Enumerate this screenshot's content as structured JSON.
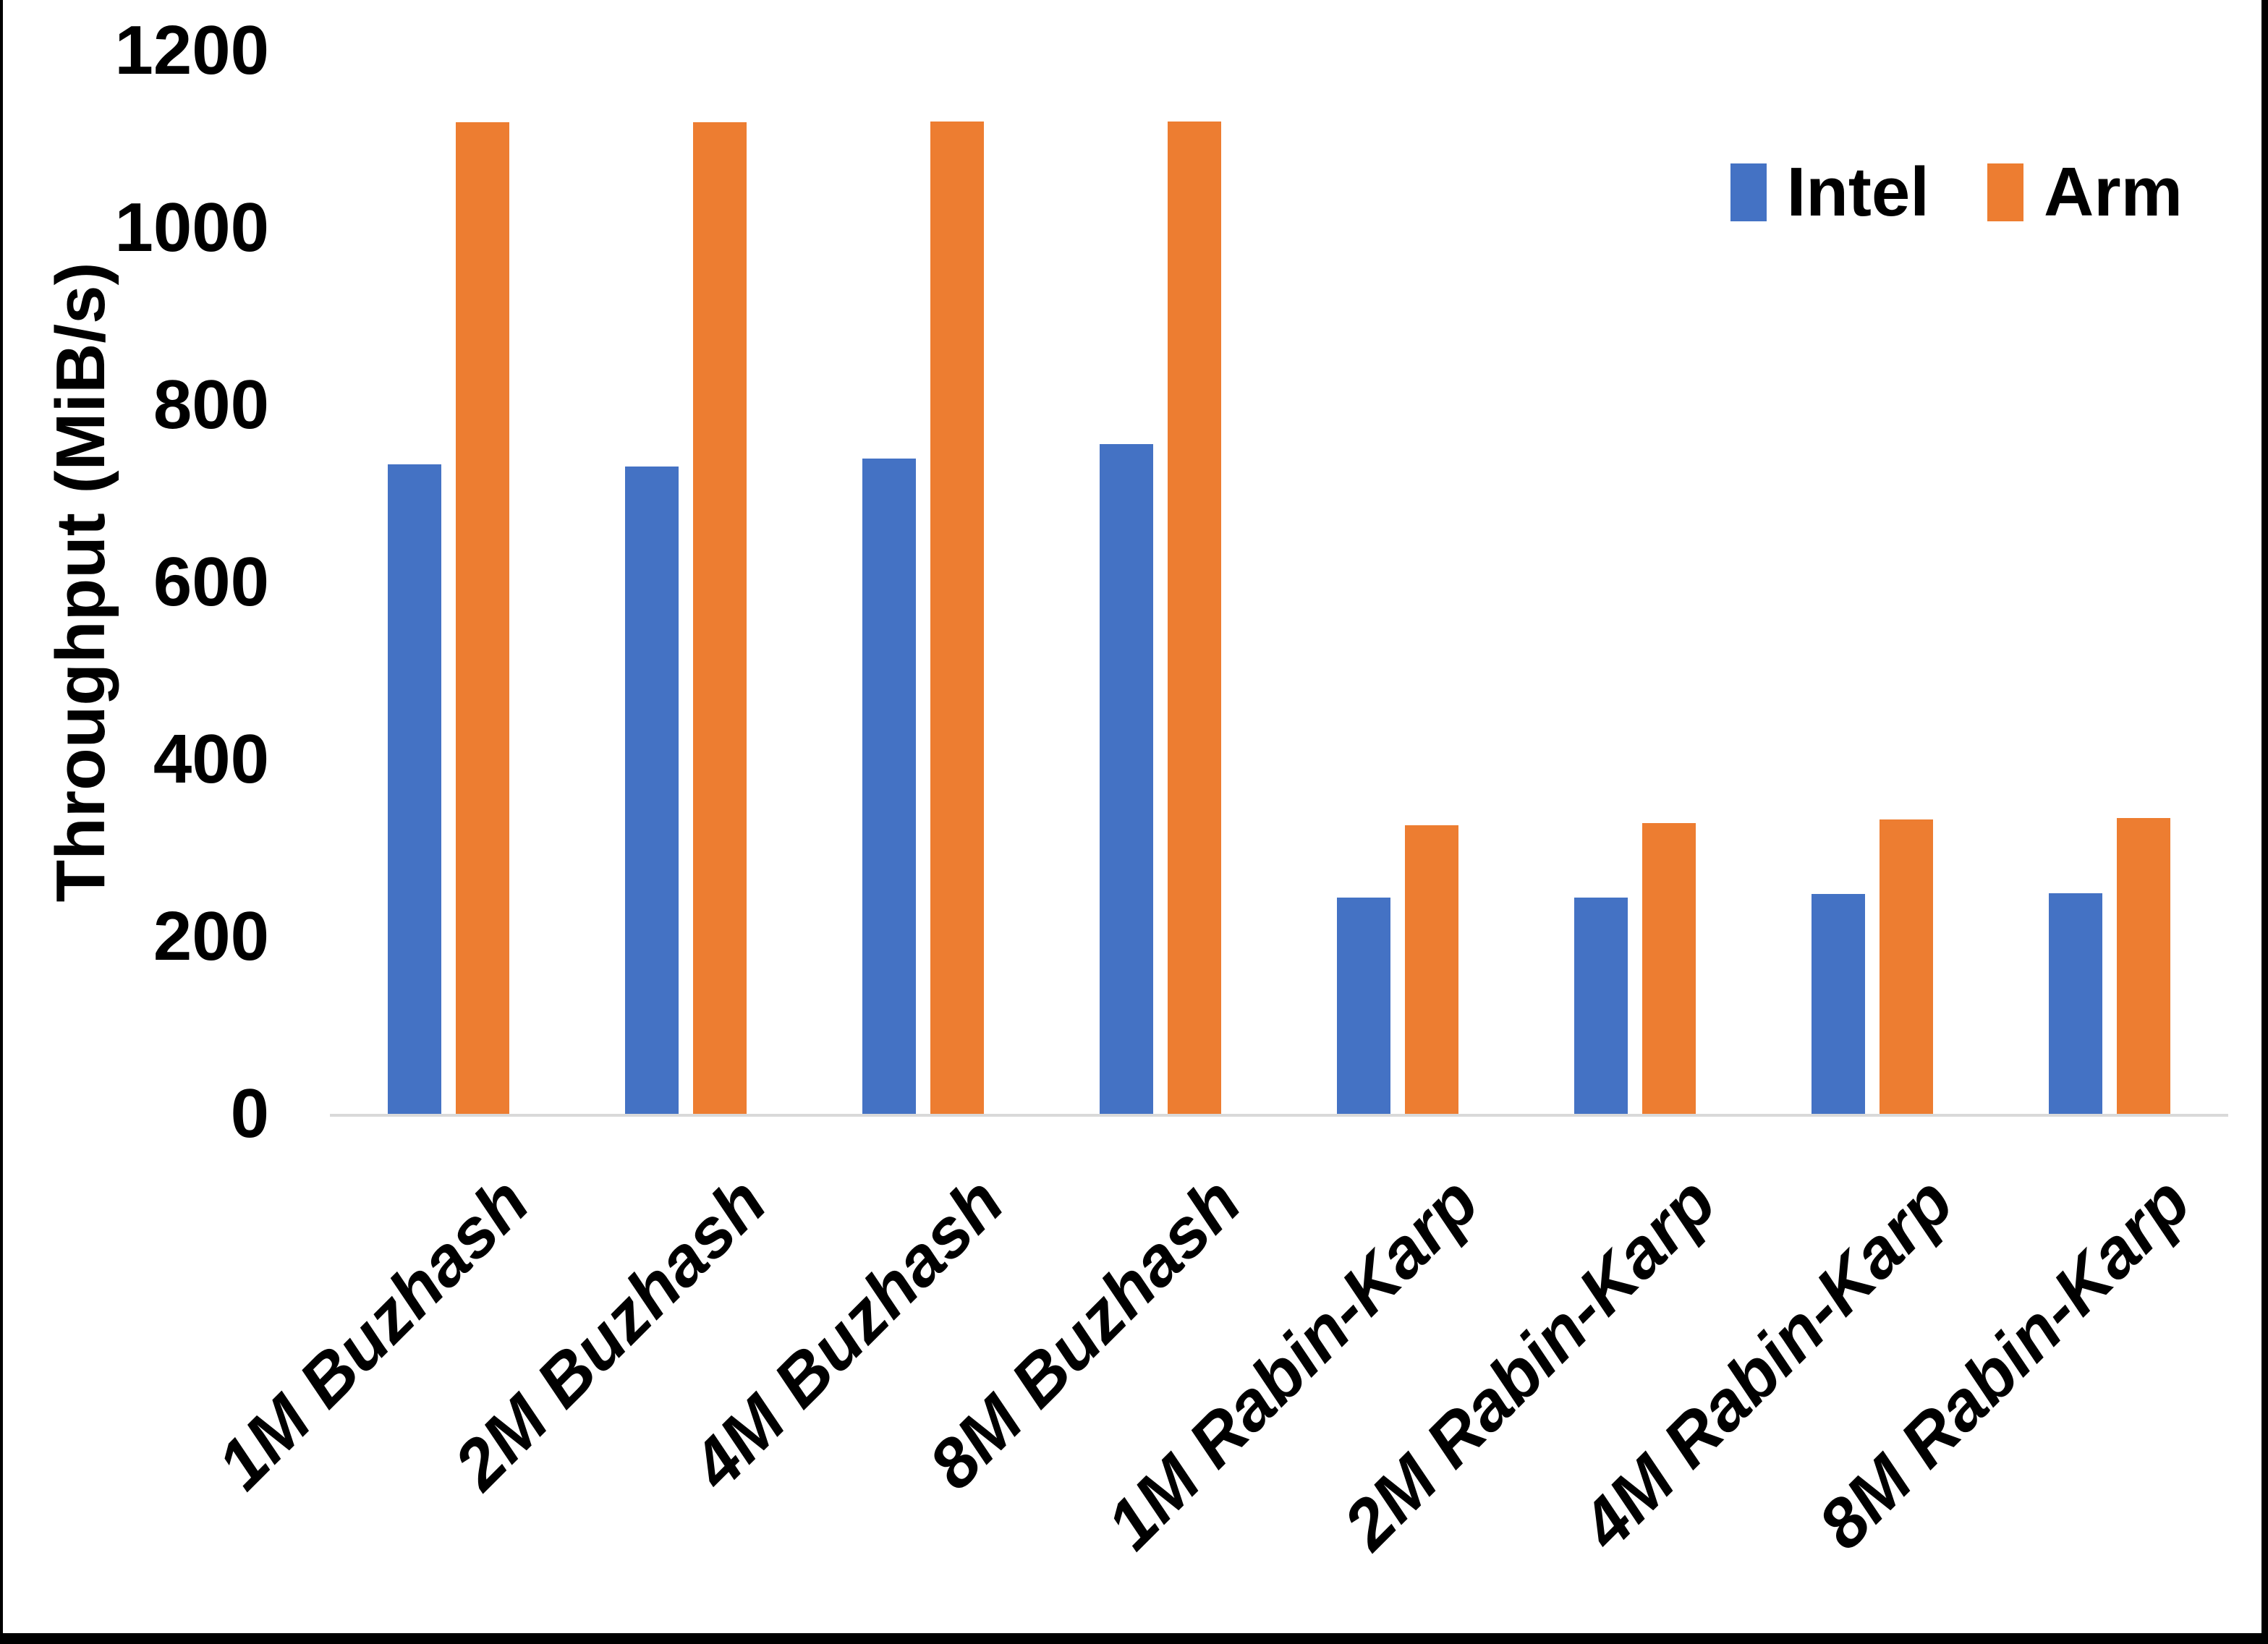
{
  "figure": {
    "background": "#ffffff",
    "frame_color": "#000000",
    "axis_line_color": "#d9d9d9",
    "text_color": "#000000"
  },
  "y_axis": {
    "title": "Throughput (MiB/s)"
  },
  "legend": {
    "position": "top-right",
    "items": [
      {
        "label": "Intel",
        "color": "#4472C4"
      },
      {
        "label": "Arm",
        "color": "#ED7D31"
      }
    ]
  },
  "chart_data": {
    "type": "bar",
    "title": "",
    "xlabel": "",
    "ylabel": "Throughput (MiB/s)",
    "ylim": [
      0,
      1200
    ],
    "yticks": [
      0,
      200,
      400,
      600,
      800,
      1000,
      1200
    ],
    "grid": false,
    "legend_position": "top-right",
    "categories": [
      "1M Buzhash",
      "2M Buzhash",
      "4M Buzhash",
      "8M Buzhash",
      "1M Rabin-Karp",
      "2M Rabin-Karp",
      "4M Rabin-Karp",
      "8M Rabin-Karp"
    ],
    "series": [
      {
        "name": "Intel",
        "color": "#4472C4",
        "values": [
          733,
          731,
          740,
          756,
          244,
          244,
          248,
          249
        ]
      },
      {
        "name": "Arm",
        "color": "#ED7D31",
        "values": [
          1119,
          1119,
          1120,
          1120,
          326,
          328,
          332,
          334
        ]
      }
    ]
  }
}
